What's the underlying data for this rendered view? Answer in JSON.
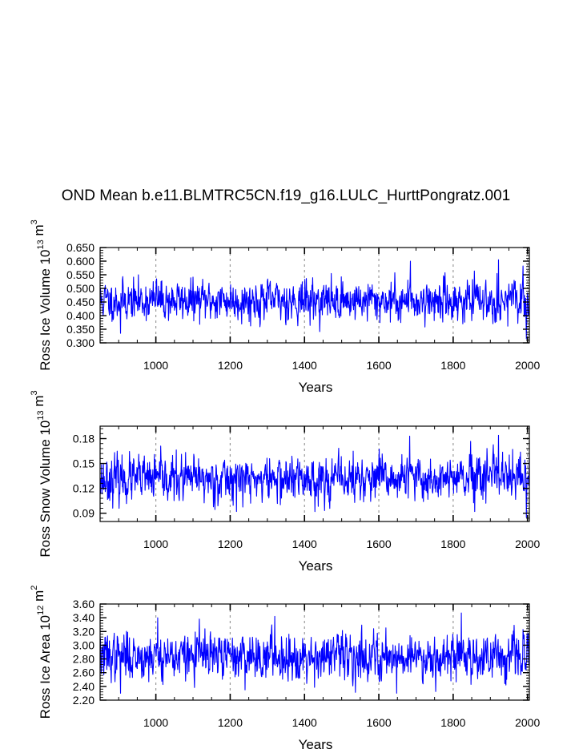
{
  "figure": {
    "title": "OND Mean b.e11.BLMTRC5CN.f19_g16.LULC_HurttPongratz.001",
    "line_color": "#0000ff",
    "gridline_color": "#999999"
  },
  "chart_data": [
    {
      "type": "line",
      "title": "OND Mean b.e11.BLMTRC5CN.f19_g16.LULC_HurttPongratz.001",
      "xlabel": "Years",
      "ylabel": {
        "base": "Ross Ice Volume 10",
        "exp1": "13",
        "unit": " m",
        "exp2": "3"
      },
      "xlim": [
        850,
        2005
      ],
      "ylim": [
        0.3,
        0.65
      ],
      "xticks": [
        1000,
        1200,
        1400,
        1600,
        1800,
        2000
      ],
      "xtick_labels": [
        "1000",
        "1200",
        "1400",
        "1600",
        "1800",
        "2000"
      ],
      "yticks": [
        0.3,
        0.35,
        0.4,
        0.45,
        0.5,
        0.55,
        0.6,
        0.65
      ],
      "ytick_labels": [
        "0.300",
        "0.350",
        "0.400",
        "0.450",
        "0.500",
        "0.550",
        "0.600",
        "0.650"
      ],
      "grid": "dashed vertical at major x ticks",
      "series": {
        "name": "Ross Ice Volume",
        "x_start": 850,
        "x_end": 2005,
        "mean": 0.455,
        "amplitude": 0.035,
        "seed": 11,
        "extremes": [
          [
            1685,
            0.6
          ],
          [
            1922,
            0.605
          ],
          [
            1997,
            0.315
          ],
          [
            905,
            0.335
          ],
          [
            1002,
            0.535
          ]
        ]
      }
    },
    {
      "type": "line",
      "xlabel": "Years",
      "ylabel": {
        "base": "Ross Snow Volume 10",
        "exp1": "13",
        "unit": " m",
        "exp2": "3"
      },
      "xlim": [
        850,
        2005
      ],
      "ylim": [
        0.08,
        0.195
      ],
      "xticks": [
        1000,
        1200,
        1400,
        1600,
        1800,
        2000
      ],
      "xtick_labels": [
        "1000",
        "1200",
        "1400",
        "1600",
        "1800",
        "2000"
      ],
      "yticks": [
        0.09,
        0.12,
        0.15,
        0.18
      ],
      "ytick_labels": [
        "0.09",
        "0.12",
        "0.15",
        "0.18"
      ],
      "grid": "dashed vertical at major x ticks",
      "series": {
        "name": "Ross Snow Volume",
        "x_start": 850,
        "x_end": 2005,
        "mean": 0.131,
        "amplitude": 0.013,
        "seed": 23,
        "extremes": [
          [
            1683,
            0.183
          ],
          [
            1922,
            0.184
          ],
          [
            1997,
            0.085
          ],
          [
            1960,
            0.167
          ],
          [
            1858,
            0.092
          ]
        ]
      }
    },
    {
      "type": "line",
      "xlabel": "Years",
      "ylabel": {
        "base": "Ross Ice Area 10",
        "exp1": "12",
        "unit": " m",
        "exp2": "2"
      },
      "xlim": [
        850,
        2005
      ],
      "ylim": [
        2.2,
        3.6
      ],
      "xticks": [
        1000,
        1200,
        1400,
        1600,
        1800,
        2000
      ],
      "xtick_labels": [
        "1000",
        "1200",
        "1400",
        "1600",
        "1800",
        "2000"
      ],
      "yticks": [
        2.2,
        2.4,
        2.6,
        2.8,
        3.0,
        3.2,
        3.4,
        3.6
      ],
      "ytick_labels": [
        "2.20",
        "2.40",
        "2.60",
        "2.80",
        "3.00",
        "3.20",
        "3.40",
        "3.60"
      ],
      "grid": "dashed vertical at major x ticks",
      "series": {
        "name": "Ross Ice Area",
        "x_start": 850,
        "x_end": 2005,
        "mean": 2.84,
        "amplitude": 0.16,
        "seed": 37,
        "extremes": [
          [
            1822,
            3.47
          ],
          [
            1005,
            3.4
          ],
          [
            1117,
            3.38
          ],
          [
            1320,
            3.42
          ],
          [
            905,
            2.3
          ],
          [
            1648,
            2.3
          ]
        ]
      }
    }
  ]
}
